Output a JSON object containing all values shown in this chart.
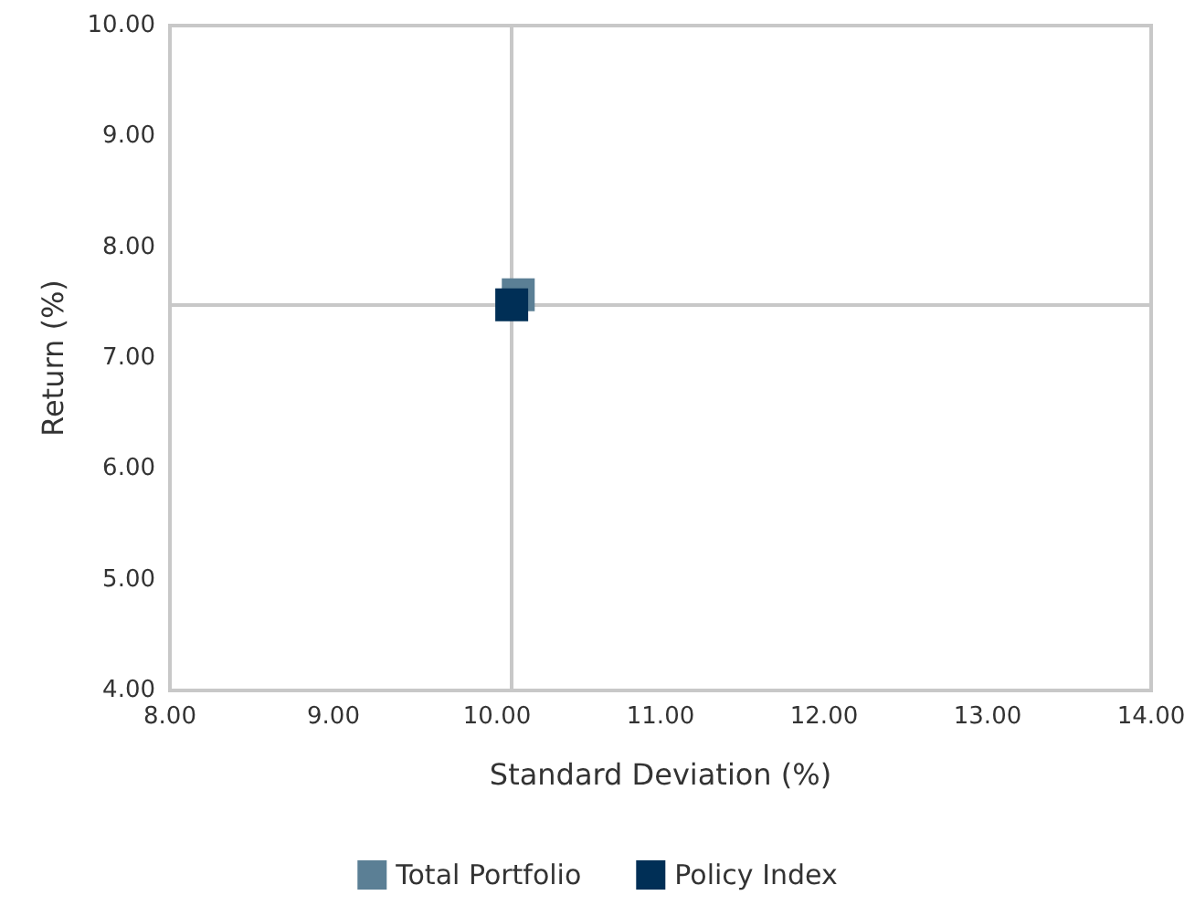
{
  "chart_data": {
    "type": "scatter",
    "xlabel": "Standard Deviation (%)",
    "ylabel": "Return (%)",
    "series": [
      {
        "name": "Total Portfolio",
        "color": "#5b7f95",
        "x": [
          10.13
        ],
        "values": [
          7.57
        ]
      },
      {
        "name": "Policy Index",
        "color": "#002f56",
        "x": [
          10.09
        ],
        "values": [
          7.48
        ]
      }
    ],
    "xlim": [
      8,
      14
    ],
    "xticks": [
      {
        "value": 8,
        "label": "8.00"
      },
      {
        "value": 9,
        "label": "9.00"
      },
      {
        "value": 10,
        "label": "10.00"
      },
      {
        "value": 11,
        "label": "11.00"
      },
      {
        "value": 12,
        "label": "12.00"
      },
      {
        "value": 13,
        "label": "13.00"
      },
      {
        "value": 14,
        "label": "14.00"
      }
    ],
    "ylim": [
      4,
      10
    ],
    "yticks": [
      {
        "value": 4,
        "label": "4.00"
      },
      {
        "value": 5,
        "label": "5.00"
      },
      {
        "value": 6,
        "label": "6.00"
      },
      {
        "value": 7,
        "label": "7.00"
      },
      {
        "value": 8,
        "label": "8.00"
      },
      {
        "value": 9,
        "label": "9.00"
      },
      {
        "value": 10,
        "label": "10.00"
      }
    ],
    "ref_lines": [
      {
        "axis": "x",
        "value": 10.09,
        "color": "#c8c8c8"
      },
      {
        "axis": "y",
        "value": 7.48,
        "color": "#c8c8c8"
      }
    ],
    "marker": "square",
    "grid": false,
    "legend": "bottom"
  }
}
